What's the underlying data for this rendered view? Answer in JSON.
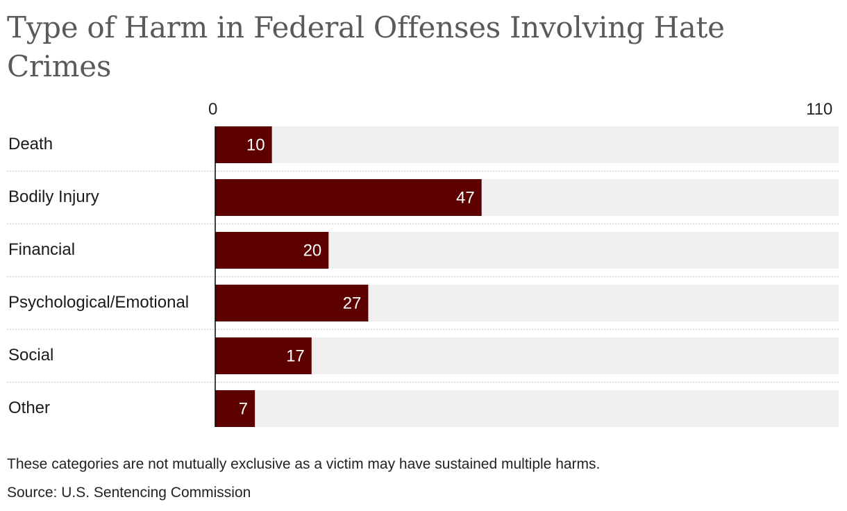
{
  "title": "Type of Harm in Federal Offenses Involving Hate Crimes",
  "axis": {
    "min_label": "0",
    "max_label": "110"
  },
  "footnote": "These categories are not mutually exclusive as a victim may have sustained multiple harms.",
  "source": "Source: U.S. Sentencing Commission",
  "colors": {
    "bar": "#5c0000",
    "track": "#f0f0f0",
    "value_text": "#ffffff",
    "axis": "#000000",
    "divider": "#c8c8c8"
  },
  "chart_data": {
    "type": "bar",
    "orientation": "horizontal",
    "title": "Type of Harm in Federal Offenses Involving Hate Crimes",
    "categories": [
      "Death",
      "Bodily Injury",
      "Financial",
      "Psychological/Emotional",
      "Social",
      "Other"
    ],
    "values": [
      10,
      47,
      20,
      27,
      17,
      7
    ],
    "xlim": [
      0,
      110
    ],
    "grid": false,
    "legend": "none"
  }
}
